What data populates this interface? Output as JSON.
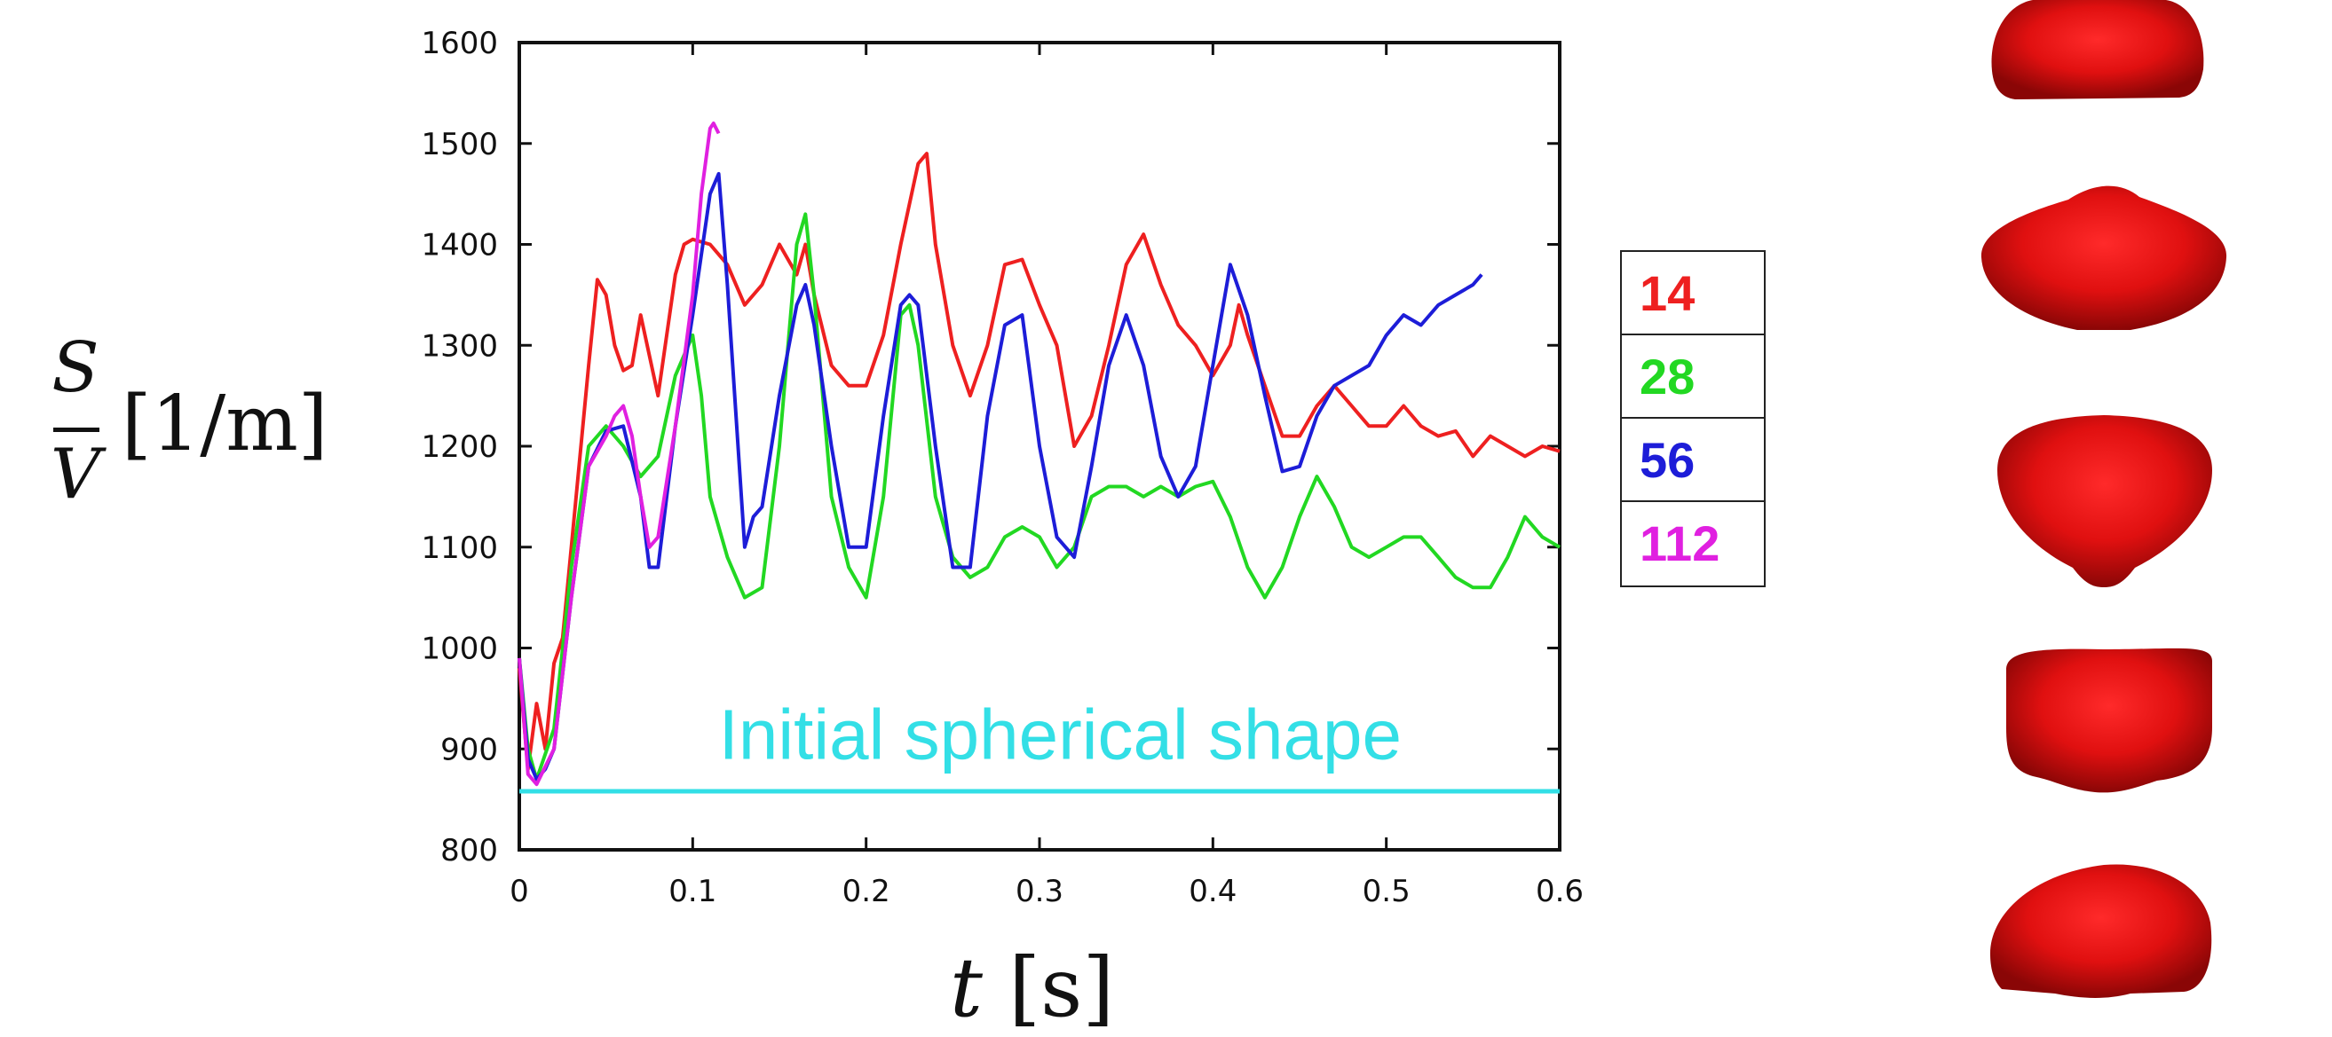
{
  "chart_data": {
    "type": "line",
    "xlabel_var": "t",
    "xlabel_unit": "[s]",
    "ylabel_num": "S",
    "ylabel_den": "V",
    "ylabel_unit": "[1/m]",
    "xlim": [
      0,
      0.6
    ],
    "ylim": [
      800,
      1600
    ],
    "xticks": [
      "0",
      "0.1",
      "0.2",
      "0.3",
      "0.4",
      "0.5",
      "0.6"
    ],
    "yticks": [
      "800",
      "900",
      "1000",
      "1100",
      "1200",
      "1300",
      "1400",
      "1500",
      "1600"
    ],
    "annotation": "Initial spherical shape",
    "reference_line": {
      "y": 858,
      "color": "#33dfe6"
    },
    "legend_position": "right",
    "series": [
      {
        "name": "14",
        "color": "#ee2020",
        "x": [
          0,
          0.005,
          0.01,
          0.015,
          0.02,
          0.025,
          0.03,
          0.04,
          0.045,
          0.05,
          0.055,
          0.06,
          0.065,
          0.07,
          0.08,
          0.09,
          0.095,
          0.1,
          0.11,
          0.12,
          0.13,
          0.14,
          0.15,
          0.16,
          0.165,
          0.17,
          0.18,
          0.19,
          0.2,
          0.21,
          0.22,
          0.23,
          0.235,
          0.24,
          0.25,
          0.26,
          0.27,
          0.28,
          0.29,
          0.3,
          0.31,
          0.32,
          0.33,
          0.34,
          0.35,
          0.36,
          0.37,
          0.38,
          0.39,
          0.4,
          0.41,
          0.415,
          0.42,
          0.43,
          0.44,
          0.45,
          0.46,
          0.47,
          0.48,
          0.49,
          0.5,
          0.51,
          0.52,
          0.53,
          0.54,
          0.55,
          0.56,
          0.57,
          0.58,
          0.59,
          0.6
        ],
        "y": [
          980,
          880,
          945,
          900,
          985,
          1010,
          1100,
          1280,
          1365,
          1350,
          1300,
          1275,
          1280,
          1330,
          1250,
          1370,
          1400,
          1405,
          1400,
          1380,
          1340,
          1360,
          1400,
          1370,
          1400,
          1350,
          1280,
          1260,
          1260,
          1310,
          1400,
          1480,
          1490,
          1400,
          1300,
          1250,
          1300,
          1380,
          1385,
          1340,
          1300,
          1200,
          1230,
          1300,
          1380,
          1410,
          1360,
          1320,
          1300,
          1270,
          1300,
          1340,
          1310,
          1260,
          1210,
          1210,
          1240,
          1260,
          1240,
          1220,
          1220,
          1240,
          1220,
          1210,
          1215,
          1190,
          1210,
          1200,
          1190,
          1200,
          1195
        ]
      },
      {
        "name": "28",
        "color": "#22d822",
        "x": [
          0,
          0.005,
          0.01,
          0.02,
          0.03,
          0.04,
          0.05,
          0.06,
          0.07,
          0.08,
          0.09,
          0.1,
          0.105,
          0.11,
          0.12,
          0.13,
          0.14,
          0.15,
          0.16,
          0.165,
          0.17,
          0.18,
          0.19,
          0.2,
          0.21,
          0.22,
          0.225,
          0.23,
          0.24,
          0.25,
          0.26,
          0.27,
          0.28,
          0.29,
          0.3,
          0.31,
          0.32,
          0.33,
          0.34,
          0.35,
          0.36,
          0.37,
          0.38,
          0.39,
          0.4,
          0.41,
          0.42,
          0.43,
          0.44,
          0.45,
          0.46,
          0.47,
          0.48,
          0.49,
          0.5,
          0.51,
          0.52,
          0.53,
          0.54,
          0.55,
          0.56,
          0.57,
          0.58,
          0.59,
          0.6
        ],
        "y": [
          990,
          900,
          870,
          920,
          1080,
          1200,
          1220,
          1200,
          1170,
          1190,
          1270,
          1310,
          1250,
          1150,
          1090,
          1050,
          1060,
          1200,
          1400,
          1430,
          1350,
          1150,
          1080,
          1050,
          1150,
          1330,
          1340,
          1300,
          1150,
          1090,
          1070,
          1080,
          1110,
          1120,
          1110,
          1080,
          1100,
          1150,
          1160,
          1160,
          1150,
          1160,
          1150,
          1160,
          1165,
          1130,
          1080,
          1050,
          1080,
          1130,
          1170,
          1140,
          1100,
          1090,
          1100,
          1110,
          1110,
          1090,
          1070,
          1060,
          1060,
          1090,
          1130,
          1110,
          1100
        ]
      },
      {
        "name": "56",
        "color": "#1d1dd8",
        "x": [
          0,
          0.005,
          0.01,
          0.015,
          0.02,
          0.03,
          0.04,
          0.05,
          0.06,
          0.07,
          0.075,
          0.08,
          0.09,
          0.1,
          0.11,
          0.115,
          0.12,
          0.13,
          0.135,
          0.14,
          0.15,
          0.16,
          0.165,
          0.17,
          0.18,
          0.19,
          0.2,
          0.21,
          0.22,
          0.225,
          0.23,
          0.24,
          0.25,
          0.26,
          0.27,
          0.28,
          0.29,
          0.3,
          0.31,
          0.32,
          0.33,
          0.34,
          0.35,
          0.36,
          0.37,
          0.38,
          0.39,
          0.4,
          0.405,
          0.41,
          0.42,
          0.43,
          0.44,
          0.45,
          0.46,
          0.47,
          0.48,
          0.49,
          0.5,
          0.51,
          0.52,
          0.53,
          0.54,
          0.55,
          0.555
        ],
        "y": [
          990,
          890,
          870,
          880,
          900,
          1050,
          1180,
          1215,
          1220,
          1150,
          1080,
          1080,
          1220,
          1330,
          1450,
          1470,
          1360,
          1100,
          1130,
          1140,
          1250,
          1340,
          1360,
          1320,
          1200,
          1100,
          1100,
          1230,
          1340,
          1350,
          1340,
          1200,
          1080,
          1080,
          1230,
          1320,
          1330,
          1200,
          1110,
          1090,
          1180,
          1280,
          1330,
          1280,
          1190,
          1150,
          1180,
          1280,
          1330,
          1380,
          1330,
          1250,
          1175,
          1180,
          1230,
          1260,
          1270,
          1280,
          1310,
          1330,
          1320,
          1340,
          1350,
          1360,
          1370
        ]
      },
      {
        "name": "112",
        "color": "#e020e0",
        "x": [
          0,
          0.005,
          0.01,
          0.02,
          0.03,
          0.04,
          0.05,
          0.055,
          0.06,
          0.065,
          0.07,
          0.075,
          0.08,
          0.09,
          0.1,
          0.105,
          0.11,
          0.112,
          0.115
        ],
        "y": [
          990,
          875,
          865,
          900,
          1050,
          1180,
          1210,
          1230,
          1240,
          1210,
          1150,
          1100,
          1110,
          1220,
          1350,
          1450,
          1515,
          1520,
          1510
        ]
      }
    ]
  },
  "side_images": {
    "color": "#e01010",
    "shapes": [
      "droplet-shape-1",
      "droplet-shape-2",
      "droplet-shape-3",
      "droplet-shape-4",
      "droplet-shape-5"
    ]
  }
}
